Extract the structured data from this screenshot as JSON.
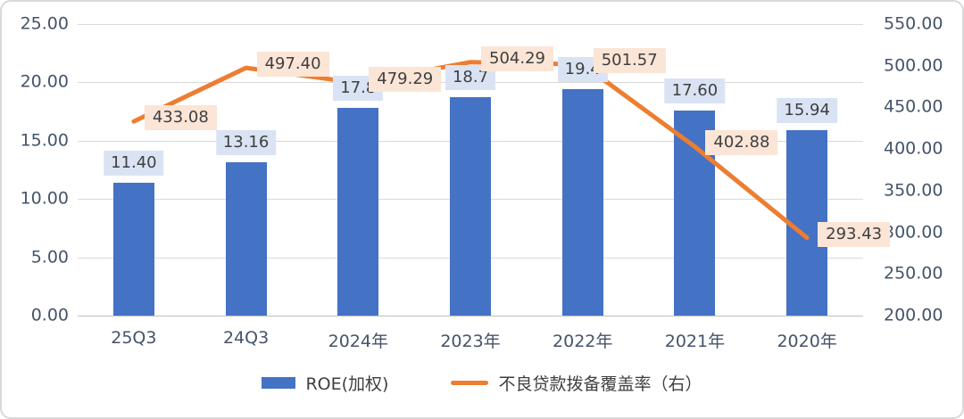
{
  "chart_data": {
    "type": "combo",
    "categories": [
      "25Q3",
      "24Q3",
      "2024年",
      "2023年",
      "2022年",
      "2021年",
      "2020年"
    ],
    "series": [
      {
        "name": "ROE(加权)",
        "type": "bar",
        "axis": "left",
        "values": [
          11.4,
          13.16,
          17.8,
          18.7,
          19.4,
          17.6,
          15.94
        ],
        "data_labels": [
          "11.40",
          "13.16",
          "17.8",
          "18.7",
          "19.4",
          "17.60",
          "15.94"
        ],
        "color": "#4472C4",
        "label_bg": "#DAE3F3"
      },
      {
        "name": "不良贷款拨备覆盖率（右）",
        "type": "line",
        "axis": "right",
        "values": [
          433.08,
          497.4,
          479.29,
          504.29,
          501.57,
          402.88,
          293.43
        ],
        "data_labels": [
          "433.08",
          "497.40",
          "479.29",
          "504.29",
          "501.57",
          "402.88",
          "293.43"
        ],
        "color": "#ED7D31",
        "label_bg": "#FBE5D6"
      }
    ],
    "left_axis": {
      "min": 0,
      "max": 25,
      "step": 5,
      "ticks": [
        "25.00",
        "20.00",
        "15.00",
        "10.00",
        "5.00",
        "0.00"
      ]
    },
    "right_axis": {
      "min": 200,
      "max": 550,
      "step": 50,
      "ticks": [
        "550.00",
        "500.00",
        "450.00",
        "400.00",
        "350.00",
        "300.00",
        "250.00",
        "200.00"
      ]
    },
    "grid": true,
    "legend_position": "bottom",
    "colors": {
      "axis_text": "#44546A",
      "gridline": "#D9D9D9",
      "axis_line": "#BFBFBF",
      "label_text": "#3F3F3F"
    }
  }
}
